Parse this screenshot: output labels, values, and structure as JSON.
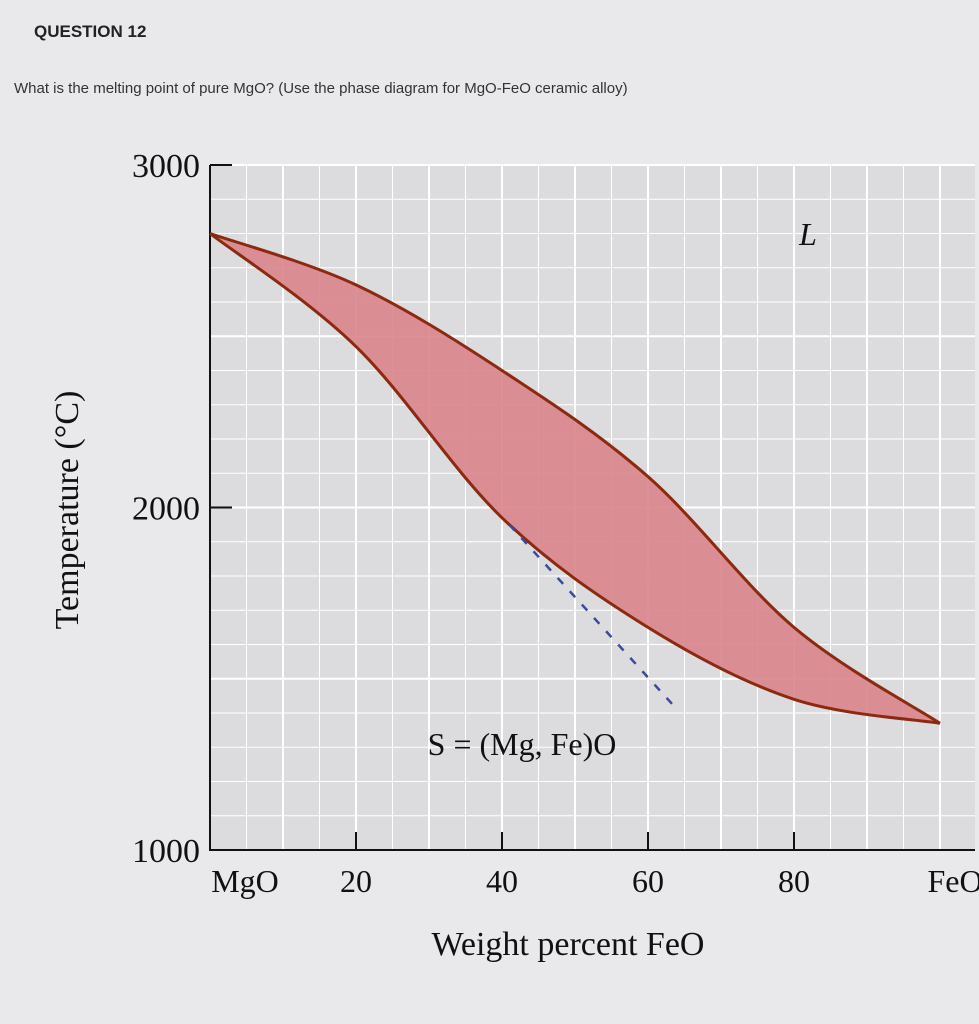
{
  "question": {
    "title": "QUESTION 12",
    "text": "What is the melting point of pure MgO? (Use the phase diagram for MgO-FeO ceramic alloy)"
  },
  "chart_data": {
    "type": "area",
    "title": "",
    "xlabel": "Weight percent FeO",
    "ylabel": "Temperature (°C)",
    "xlim": [
      0,
      100
    ],
    "ylim": [
      1000,
      3000
    ],
    "x_ticks": [
      {
        "value": 0,
        "label": "MgO"
      },
      {
        "value": 20,
        "label": "20"
      },
      {
        "value": 40,
        "label": "40"
      },
      {
        "value": 60,
        "label": "60"
      },
      {
        "value": 80,
        "label": "80"
      },
      {
        "value": 100,
        "label": "FeO"
      }
    ],
    "y_ticks": [
      {
        "value": 1000,
        "label": "1000"
      },
      {
        "value": 2000,
        "label": "2000"
      },
      {
        "value": 3000,
        "label": "3000"
      }
    ],
    "grid": true,
    "series": [
      {
        "name": "liquidus",
        "x": [
          0,
          20,
          40,
          60,
          80,
          100
        ],
        "y": [
          2800,
          2650,
          2400,
          2090,
          1650,
          1370
        ]
      },
      {
        "name": "solidus",
        "x": [
          0,
          20,
          40,
          60,
          80,
          100
        ],
        "y": [
          2800,
          2470,
          1970,
          1650,
          1440,
          1370
        ]
      },
      {
        "name": "dashed",
        "x": [
          41,
          64
        ],
        "y": [
          1950,
          1410
        ]
      }
    ],
    "annotations": [
      {
        "text": "L",
        "x": 80,
        "y": 2800
      },
      {
        "text": "S = (Mg, Fe)O",
        "x": 50,
        "y": 1300
      }
    ],
    "colors": {
      "two_phase": "#d9848a",
      "boundary": "#8b2a10",
      "dashed": "#3a4aa0",
      "grid": "#ffffff",
      "plot_bg": "#dcdcde"
    }
  }
}
